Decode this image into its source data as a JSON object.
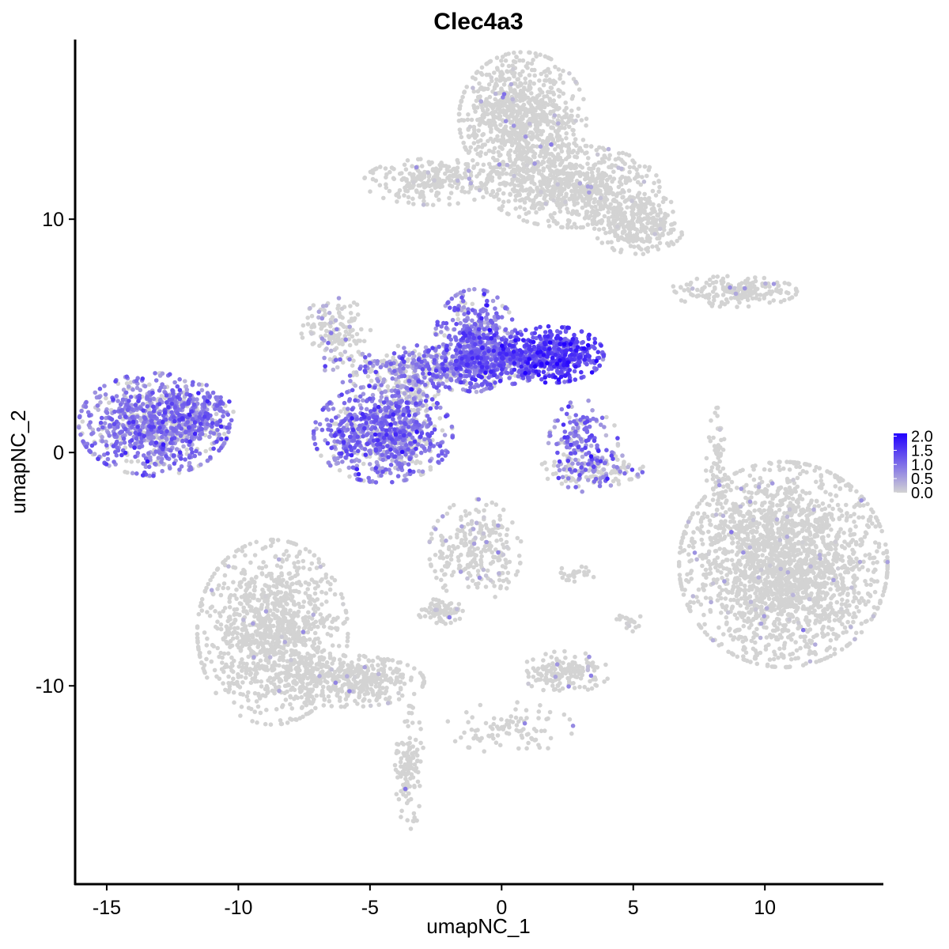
{
  "chart_data": {
    "type": "scatter",
    "title": "Clec4a3",
    "xlabel": "umapNC_1",
    "ylabel": "umapNC_2",
    "xlim": [
      -16.2,
      14.5
    ],
    "ylim": [
      -18.5,
      17.7
    ],
    "x_ticks": [
      -15,
      -10,
      -5,
      0,
      5,
      10
    ],
    "x_tick_labels": [
      "-15",
      "-10",
      "-5",
      "0",
      "5",
      "10"
    ],
    "y_ticks": [
      -10,
      0,
      10
    ],
    "y_tick_labels": [
      "-10",
      "0",
      "10"
    ],
    "grid": false,
    "legend": {
      "position": "right",
      "type": "colorbar",
      "breaks": [
        0.0,
        0.5,
        1.0,
        1.5,
        2.0
      ],
      "labels": [
        "0.0",
        "0.5",
        "1.0",
        "1.5",
        "2.0"
      ]
    },
    "color_low": "#d3d3d3",
    "color_high": "#2200ff",
    "clusters": [
      {
        "cx": -13.2,
        "cy": 1.2,
        "sx": 1.3,
        "sy": 1.0,
        "n": 900,
        "expr": 0.85
      },
      {
        "cx": -11.5,
        "cy": 1.6,
        "sx": 0.6,
        "sy": 0.6,
        "n": 160,
        "expr": 0.8
      },
      {
        "cx": -1.0,
        "cy": 4.8,
        "sx": 0.7,
        "sy": 1.0,
        "n": 450,
        "expr": 0.95
      },
      {
        "cx": 1.9,
        "cy": 4.2,
        "sx": 0.9,
        "sy": 0.55,
        "n": 450,
        "expr": 1.35
      },
      {
        "cx": -0.3,
        "cy": 3.9,
        "sx": 1.3,
        "sy": 0.45,
        "n": 350,
        "expr": 1.05
      },
      {
        "cx": -3.2,
        "cy": 3.6,
        "sx": 1.6,
        "sy": 0.45,
        "n": 320,
        "expr": 0.75
      },
      {
        "cx": -4.5,
        "cy": 0.8,
        "sx": 1.2,
        "sy": 0.95,
        "n": 800,
        "expr": 0.9
      },
      {
        "cx": -3.5,
        "cy": 2.2,
        "sx": 0.5,
        "sy": 0.9,
        "n": 150,
        "expr": 0.6
      },
      {
        "cx": -6.3,
        "cy": 5.3,
        "sx": 0.6,
        "sy": 0.6,
        "n": 140,
        "expr": 0.25
      },
      {
        "cx": 3.1,
        "cy": 0.3,
        "sx": 0.6,
        "sy": 0.9,
        "n": 170,
        "expr": 0.9
      },
      {
        "cx": 3.4,
        "cy": -0.7,
        "sx": 0.9,
        "sy": 0.35,
        "n": 130,
        "expr": 0.5
      },
      {
        "cx": 0.8,
        "cy": 14.3,
        "sx": 1.1,
        "sy": 1.3,
        "n": 900,
        "expr": 0.02
      },
      {
        "cx": 2.7,
        "cy": 11.4,
        "sx": 1.5,
        "sy": 0.8,
        "n": 700,
        "expr": 0.03
      },
      {
        "cx": 5.2,
        "cy": 9.8,
        "sx": 0.8,
        "sy": 0.6,
        "n": 300,
        "expr": 0.02
      },
      {
        "cx": -2.6,
        "cy": 11.6,
        "sx": 1.2,
        "sy": 0.45,
        "n": 260,
        "expr": 0.04
      },
      {
        "cx": 8.8,
        "cy": 6.9,
        "sx": 1.1,
        "sy": 0.3,
        "n": 200,
        "expr": 0.05
      },
      {
        "cx": 10.7,
        "cy": -4.8,
        "sx": 1.8,
        "sy": 2.0,
        "n": 2200,
        "expr": 0.03
      },
      {
        "cx": -8.7,
        "cy": -7.7,
        "sx": 1.3,
        "sy": 1.8,
        "n": 1100,
        "expr": 0.03
      },
      {
        "cx": -5.8,
        "cy": -9.8,
        "sx": 1.3,
        "sy": 0.5,
        "n": 400,
        "expr": 0.02
      },
      {
        "cx": -3.5,
        "cy": -13.5,
        "sx": 0.25,
        "sy": 1.2,
        "n": 120,
        "expr": 0.02
      },
      {
        "cx": -1.0,
        "cy": -4.2,
        "sx": 0.8,
        "sy": 1.0,
        "n": 260,
        "expr": 0.15
      },
      {
        "cx": -2.3,
        "cy": -6.8,
        "sx": 0.4,
        "sy": 0.25,
        "n": 80,
        "expr": 0.05
      },
      {
        "cx": 2.4,
        "cy": -9.4,
        "sx": 0.8,
        "sy": 0.4,
        "n": 160,
        "expr": 0.04
      },
      {
        "cx": 8.2,
        "cy": -0.5,
        "sx": 0.2,
        "sy": 1.1,
        "n": 70,
        "expr": 0.01
      },
      {
        "cx": 0.3,
        "cy": -11.8,
        "sx": 1.1,
        "sy": 0.5,
        "n": 90,
        "expr": 0.02
      },
      {
        "cx": 2.7,
        "cy": -5.2,
        "sx": 0.4,
        "sy": 0.15,
        "n": 25,
        "expr": 0.01
      },
      {
        "cx": 4.9,
        "cy": -7.3,
        "sx": 0.25,
        "sy": 0.25,
        "n": 20,
        "expr": 0.2
      }
    ]
  }
}
